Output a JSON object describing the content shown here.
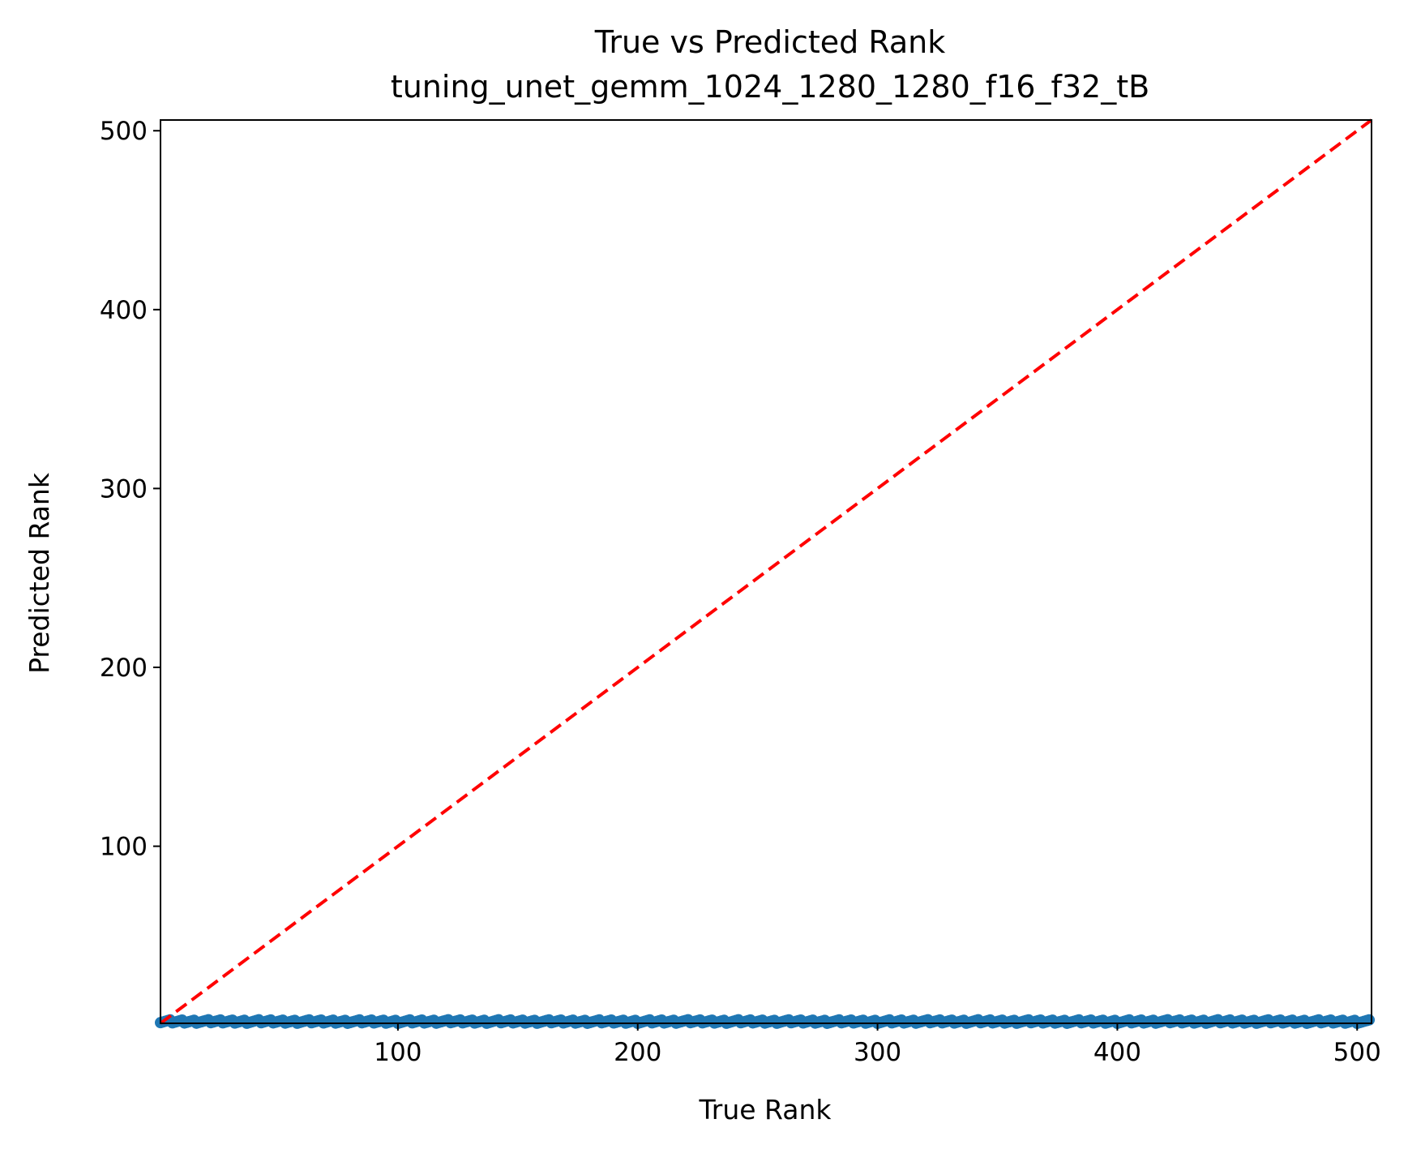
{
  "chart_data": {
    "type": "scatter",
    "title": "True vs Predicted Rank",
    "subtitle": "tuning_unet_gemm_1024_1280_1280_f16_f32_tB",
    "xlabel": "True Rank",
    "ylabel": "Predicted Rank",
    "xlim": [
      1,
      506
    ],
    "ylim": [
      1,
      506
    ],
    "xticks": [
      100,
      200,
      300,
      400,
      500
    ],
    "yticks": [
      100,
      200,
      300,
      400,
      500
    ],
    "grid": false,
    "points": {
      "x_range": [
        1,
        505
      ],
      "y_range": [
        1,
        3
      ],
      "color": "#1f77b4"
    },
    "reference_line": {
      "type": "y=x",
      "style": "dashed",
      "color": "#ff0000",
      "from": 1,
      "to": 506
    }
  }
}
